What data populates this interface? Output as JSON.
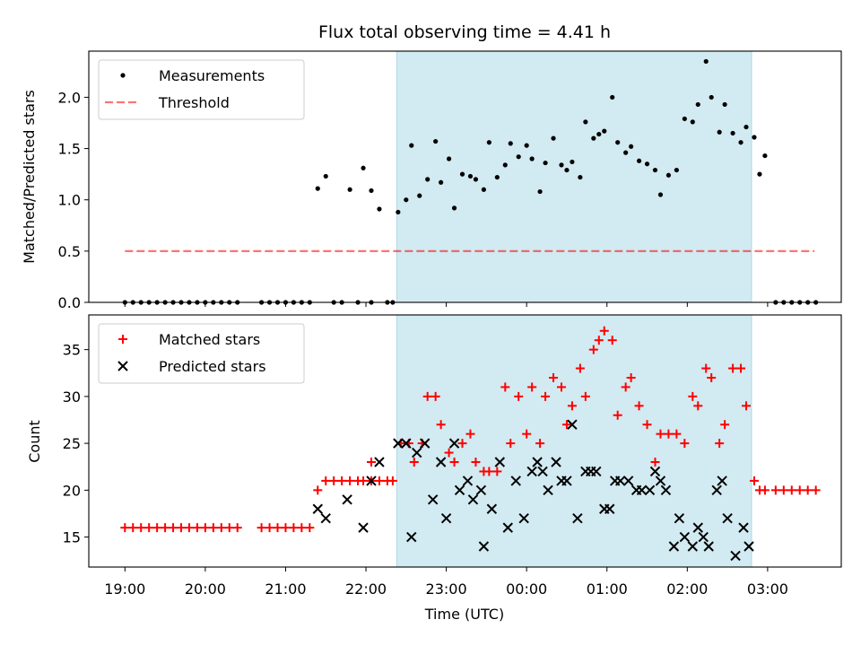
{
  "title": "Flux total observing time = 4.41 h",
  "colors": {
    "shade": "#add8e6",
    "threshold": "#ff0000",
    "matched": "#ff0000",
    "predicted": "#000000",
    "measurement": "#000000"
  },
  "chart_data": [
    {
      "type": "scatter",
      "ylabel": "Matched/Predicted stars",
      "xlim": [
        "18:33",
        "03:55"
      ],
      "ylim": [
        0,
        2.45
      ],
      "yticks": [
        "0.0",
        "0.5",
        "1.0",
        "1.5",
        "2.0"
      ],
      "shaded_interval": [
        "22:23",
        "02:48"
      ],
      "legend": {
        "placement": "upper-left",
        "entries": [
          "Measurements",
          "Threshold"
        ]
      },
      "threshold": {
        "name": "Threshold",
        "y": 0.5,
        "x_start": "19:00",
        "x_end": "03:35"
      },
      "series": [
        {
          "name": "Measurements",
          "points": [
            [
              "19:00",
              0
            ],
            [
              "19:06",
              0
            ],
            [
              "19:12",
              0
            ],
            [
              "19:18",
              0
            ],
            [
              "19:24",
              0
            ],
            [
              "19:30",
              0
            ],
            [
              "19:36",
              0
            ],
            [
              "19:42",
              0
            ],
            [
              "19:48",
              0
            ],
            [
              "19:54",
              0
            ],
            [
              "20:00",
              0
            ],
            [
              "20:06",
              0
            ],
            [
              "20:12",
              0
            ],
            [
              "20:18",
              0
            ],
            [
              "20:24",
              0
            ],
            [
              "20:42",
              0
            ],
            [
              "20:48",
              0
            ],
            [
              "20:54",
              0
            ],
            [
              "21:00",
              0
            ],
            [
              "21:06",
              0
            ],
            [
              "21:12",
              0
            ],
            [
              "21:18",
              0
            ],
            [
              "21:24",
              1.11
            ],
            [
              "21:30",
              1.23
            ],
            [
              "21:36",
              0
            ],
            [
              "21:42",
              0
            ],
            [
              "21:48",
              1.1
            ],
            [
              "21:54",
              0
            ],
            [
              "21:58",
              1.31
            ],
            [
              "22:04",
              0
            ],
            [
              "22:04",
              1.09
            ],
            [
              "22:10",
              0.91
            ],
            [
              "22:16",
              0
            ],
            [
              "22:20",
              0
            ],
            [
              "22:24",
              0.88
            ],
            [
              "22:30",
              1.0
            ],
            [
              "22:34",
              1.53
            ],
            [
              "22:40",
              1.04
            ],
            [
              "22:46",
              1.2
            ],
            [
              "22:52",
              1.57
            ],
            [
              "22:56",
              1.17
            ],
            [
              "23:02",
              1.4
            ],
            [
              "23:06",
              0.92
            ],
            [
              "23:12",
              1.25
            ],
            [
              "23:18",
              1.23
            ],
            [
              "23:22",
              1.2
            ],
            [
              "23:28",
              1.1
            ],
            [
              "23:32",
              1.56
            ],
            [
              "23:38",
              1.22
            ],
            [
              "23:44",
              1.34
            ],
            [
              "23:48",
              1.55
            ],
            [
              "23:54",
              1.42
            ],
            [
              "00:00",
              1.53
            ],
            [
              "00:04",
              1.4
            ],
            [
              "00:10",
              1.08
            ],
            [
              "00:14",
              1.36
            ],
            [
              "00:20",
              1.6
            ],
            [
              "00:26",
              1.34
            ],
            [
              "00:30",
              1.29
            ],
            [
              "00:34",
              1.37
            ],
            [
              "00:40",
              1.22
            ],
            [
              "00:44",
              1.76
            ],
            [
              "00:50",
              1.6
            ],
            [
              "00:54",
              1.64
            ],
            [
              "00:58",
              1.67
            ],
            [
              "01:04",
              2.0
            ],
            [
              "01:08",
              1.56
            ],
            [
              "01:14",
              1.46
            ],
            [
              "01:18",
              1.52
            ],
            [
              "01:24",
              1.38
            ],
            [
              "01:30",
              1.35
            ],
            [
              "01:36",
              1.29
            ],
            [
              "01:40",
              1.05
            ],
            [
              "01:46",
              1.24
            ],
            [
              "01:52",
              1.29
            ],
            [
              "01:58",
              1.79
            ],
            [
              "02:04",
              1.76
            ],
            [
              "02:08",
              1.93
            ],
            [
              "02:14",
              2.35
            ],
            [
              "02:18",
              2.0
            ],
            [
              "02:24",
              1.66
            ],
            [
              "02:28",
              1.93
            ],
            [
              "02:34",
              1.65
            ],
            [
              "02:40",
              1.56
            ],
            [
              "02:44",
              1.71
            ],
            [
              "02:50",
              1.61
            ],
            [
              "02:54",
              1.25
            ],
            [
              "02:58",
              1.43
            ],
            [
              "03:06",
              0
            ],
            [
              "03:12",
              0
            ],
            [
              "03:18",
              0
            ],
            [
              "03:24",
              0
            ],
            [
              "03:30",
              0
            ],
            [
              "03:36",
              0
            ]
          ]
        }
      ]
    },
    {
      "type": "scatter",
      "xlabel": "Time (UTC)",
      "ylabel": "Count",
      "xlim": [
        "18:33",
        "03:55"
      ],
      "ylim": [
        11.8,
        38.7
      ],
      "yticks": [
        "15",
        "20",
        "25",
        "30",
        "35"
      ],
      "xticks": [
        "19:00",
        "20:00",
        "21:00",
        "22:00",
        "23:00",
        "00:00",
        "01:00",
        "02:00",
        "03:00"
      ],
      "shaded_interval": [
        "22:23",
        "02:48"
      ],
      "legend": {
        "placement": "upper-left",
        "entries": [
          "Matched stars",
          "Predicted stars"
        ]
      },
      "series": [
        {
          "name": "Matched stars",
          "points": [
            [
              "19:00",
              16
            ],
            [
              "19:06",
              16
            ],
            [
              "19:12",
              16
            ],
            [
              "19:18",
              16
            ],
            [
              "19:24",
              16
            ],
            [
              "19:30",
              16
            ],
            [
              "19:36",
              16
            ],
            [
              "19:42",
              16
            ],
            [
              "19:48",
              16
            ],
            [
              "19:54",
              16
            ],
            [
              "20:00",
              16
            ],
            [
              "20:06",
              16
            ],
            [
              "20:12",
              16
            ],
            [
              "20:18",
              16
            ],
            [
              "20:24",
              16
            ],
            [
              "20:42",
              16
            ],
            [
              "20:48",
              16
            ],
            [
              "20:54",
              16
            ],
            [
              "21:00",
              16
            ],
            [
              "21:06",
              16
            ],
            [
              "21:12",
              16
            ],
            [
              "21:18",
              16
            ],
            [
              "21:24",
              20
            ],
            [
              "21:30",
              21
            ],
            [
              "21:36",
              21
            ],
            [
              "21:42",
              21
            ],
            [
              "21:48",
              21
            ],
            [
              "21:54",
              21
            ],
            [
              "21:58",
              21
            ],
            [
              "22:04",
              21
            ],
            [
              "22:04",
              23
            ],
            [
              "22:10",
              21
            ],
            [
              "22:16",
              21
            ],
            [
              "22:20",
              21
            ],
            [
              "22:26",
              25
            ],
            [
              "22:32",
              25
            ],
            [
              "22:36",
              23
            ],
            [
              "22:42",
              25
            ],
            [
              "22:46",
              30
            ],
            [
              "22:52",
              30
            ],
            [
              "22:56",
              27
            ],
            [
              "23:02",
              24
            ],
            [
              "23:06",
              23
            ],
            [
              "23:12",
              25
            ],
            [
              "23:18",
              26
            ],
            [
              "23:22",
              23
            ],
            [
              "23:28",
              22
            ],
            [
              "23:32",
              22
            ],
            [
              "23:38",
              22
            ],
            [
              "23:44",
              31
            ],
            [
              "23:48",
              25
            ],
            [
              "23:54",
              30
            ],
            [
              "00:00",
              26
            ],
            [
              "00:04",
              31
            ],
            [
              "00:10",
              25
            ],
            [
              "00:14",
              30
            ],
            [
              "00:20",
              32
            ],
            [
              "00:26",
              31
            ],
            [
              "00:30",
              27
            ],
            [
              "00:34",
              29
            ],
            [
              "00:40",
              33
            ],
            [
              "00:44",
              30
            ],
            [
              "00:50",
              35
            ],
            [
              "00:54",
              36
            ],
            [
              "00:58",
              37
            ],
            [
              "01:04",
              36
            ],
            [
              "01:08",
              28
            ],
            [
              "01:14",
              31
            ],
            [
              "01:18",
              32
            ],
            [
              "01:24",
              29
            ],
            [
              "01:30",
              27
            ],
            [
              "01:36",
              23
            ],
            [
              "01:40",
              26
            ],
            [
              "01:46",
              26
            ],
            [
              "01:52",
              26
            ],
            [
              "01:58",
              25
            ],
            [
              "02:04",
              30
            ],
            [
              "02:08",
              29
            ],
            [
              "02:14",
              33
            ],
            [
              "02:18",
              32
            ],
            [
              "02:24",
              25
            ],
            [
              "02:28",
              27
            ],
            [
              "02:34",
              33
            ],
            [
              "02:40",
              33
            ],
            [
              "02:44",
              29
            ],
            [
              "02:50",
              21
            ],
            [
              "02:54",
              20
            ],
            [
              "02:58",
              20
            ],
            [
              "03:06",
              20
            ],
            [
              "03:12",
              20
            ],
            [
              "03:18",
              20
            ],
            [
              "03:24",
              20
            ],
            [
              "03:30",
              20
            ],
            [
              "03:36",
              20
            ]
          ]
        },
        {
          "name": "Predicted stars",
          "points": [
            [
              "21:24",
              18
            ],
            [
              "21:30",
              17
            ],
            [
              "21:46",
              19
            ],
            [
              "21:58",
              16
            ],
            [
              "22:04",
              21
            ],
            [
              "22:10",
              23
            ],
            [
              "22:24",
              25
            ],
            [
              "22:30",
              25
            ],
            [
              "22:34",
              15
            ],
            [
              "22:38",
              24
            ],
            [
              "22:44",
              25
            ],
            [
              "22:50",
              19
            ],
            [
              "22:56",
              23
            ],
            [
              "23:00",
              17
            ],
            [
              "23:06",
              25
            ],
            [
              "23:10",
              20
            ],
            [
              "23:16",
              21
            ],
            [
              "23:20",
              19
            ],
            [
              "23:26",
              20
            ],
            [
              "23:28",
              14
            ],
            [
              "23:34",
              18
            ],
            [
              "23:40",
              23
            ],
            [
              "23:46",
              16
            ],
            [
              "23:52",
              21
            ],
            [
              "23:58",
              17
            ],
            [
              "00:04",
              22
            ],
            [
              "00:08",
              23
            ],
            [
              "00:12",
              22
            ],
            [
              "00:16",
              20
            ],
            [
              "00:22",
              23
            ],
            [
              "00:26",
              21
            ],
            [
              "00:30",
              21
            ],
            [
              "00:34",
              27
            ],
            [
              "00:38",
              17
            ],
            [
              "00:44",
              22
            ],
            [
              "00:48",
              22
            ],
            [
              "00:52",
              22
            ],
            [
              "00:58",
              18
            ],
            [
              "01:02",
              18
            ],
            [
              "01:06",
              21
            ],
            [
              "01:10",
              21
            ],
            [
              "01:16",
              21
            ],
            [
              "01:22",
              20
            ],
            [
              "01:26",
              20
            ],
            [
              "01:32",
              20
            ],
            [
              "01:36",
              22
            ],
            [
              "01:40",
              21
            ],
            [
              "01:44",
              20
            ],
            [
              "01:50",
              14
            ],
            [
              "01:54",
              17
            ],
            [
              "01:58",
              15
            ],
            [
              "02:04",
              14
            ],
            [
              "02:08",
              16
            ],
            [
              "02:12",
              15
            ],
            [
              "02:16",
              14
            ],
            [
              "02:22",
              20
            ],
            [
              "02:26",
              21
            ],
            [
              "02:30",
              17
            ],
            [
              "02:36",
              13
            ],
            [
              "02:42",
              16
            ],
            [
              "02:46",
              14
            ]
          ]
        }
      ]
    }
  ]
}
